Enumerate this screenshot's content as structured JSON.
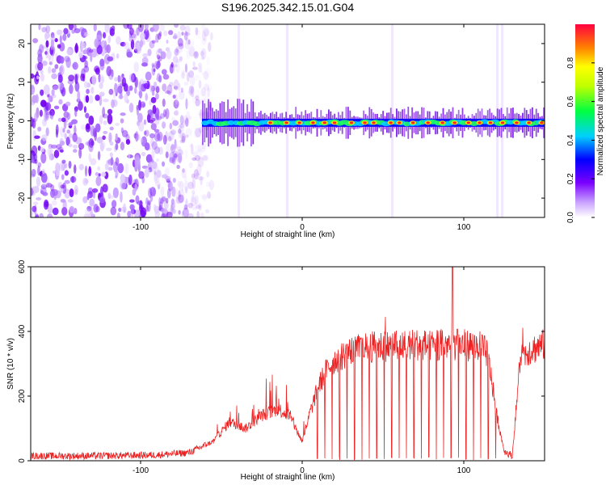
{
  "title": "S196.2025.342.15.01.G04",
  "chart_data": [
    {
      "type": "heatmap",
      "xlabel": "Height of straight line (km)",
      "ylabel": "Frequency (Hz)",
      "xlim": [
        -168,
        150
      ],
      "ylim": [
        -25,
        25
      ],
      "xticks": [
        -100,
        0,
        100
      ],
      "xtick_labels": [
        "-100",
        "0",
        "100"
      ],
      "yticks": [
        -20,
        -10,
        0,
        10,
        20
      ],
      "ytick_labels": [
        "-20",
        "-10",
        "0",
        "10",
        "20"
      ],
      "colorbar": {
        "label": "Normalized spectral amplitude",
        "range": [
          0.0,
          1.0
        ],
        "ticks": [
          0.0,
          0.2,
          0.4,
          0.6,
          0.8
        ],
        "tick_labels": [
          "0.0",
          "0.2",
          "0.4",
          "0.6",
          "0.8"
        ]
      },
      "features": [
        {
          "name": "noise",
          "x_range": [
            -168,
            -62
          ],
          "freq_range": [
            -25,
            25
          ],
          "amplitude": 0.1
        },
        {
          "name": "signal-band",
          "x_range": [
            -62,
            150
          ],
          "center_freq_hz": -0.5,
          "peak_amplitude": 0.9
        }
      ]
    },
    {
      "type": "line",
      "xlabel": "Height of straight line (km)",
      "ylabel": "SNR (10 * v/v)",
      "xlim": [
        -168,
        150
      ],
      "ylim": [
        0,
        600
      ],
      "xticks": [
        -100,
        0,
        100
      ],
      "xtick_labels": [
        "-100",
        "0",
        "100"
      ],
      "yticks": [
        0,
        200,
        400,
        600
      ],
      "ytick_labels": [
        "0",
        "200",
        "400",
        "600"
      ],
      "series": [
        {
          "name": "SNR",
          "color": "#ee2222",
          "x": [
            -168,
            -140,
            -110,
            -90,
            -70,
            -55,
            -45,
            -35,
            -25,
            -15,
            -8,
            0,
            5,
            10,
            15,
            20,
            30,
            40,
            50,
            60,
            70,
            80,
            90,
            100,
            110,
            115,
            120,
            125,
            130,
            135,
            140,
            145,
            150
          ],
          "y": [
            15,
            15,
            16,
            18,
            25,
            60,
            120,
            100,
            140,
            160,
            140,
            60,
            150,
            230,
            280,
            310,
            340,
            350,
            355,
            355,
            360,
            355,
            360,
            358,
            355,
            330,
            150,
            30,
            15,
            320,
            340,
            350,
            360
          ]
        }
      ]
    }
  ]
}
